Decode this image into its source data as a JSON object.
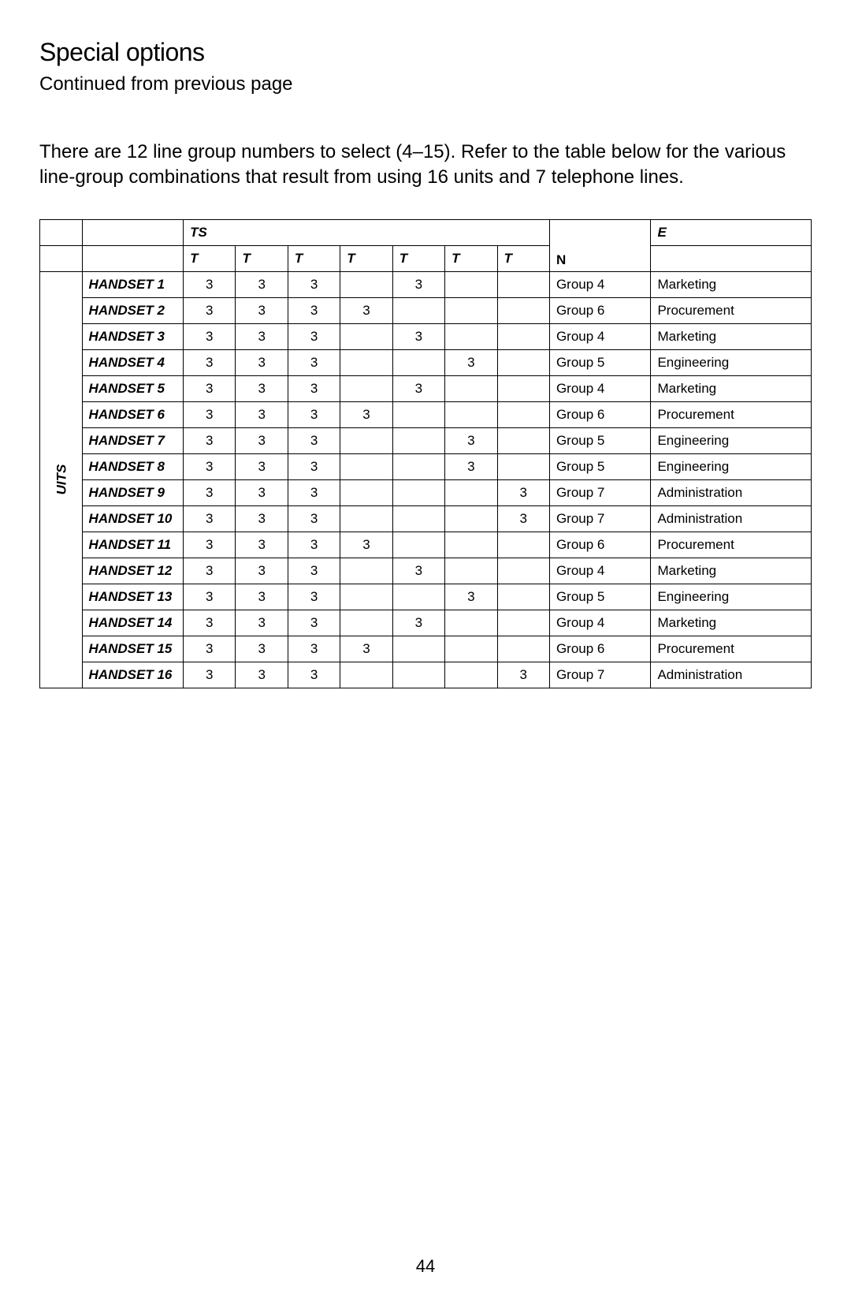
{
  "title": "Special options",
  "subtitle": "Continued from previous page",
  "body": "There are 12 line group numbers to select (4–15). Refer to the table below for the various line-group combinations that result from using 16 units and 7 telephone lines.",
  "page_number": "44",
  "table": {
    "header1": {
      "ts": "TS",
      "e": "E"
    },
    "header2": {
      "t": "T",
      "n": "N"
    },
    "rot_label": "UITS",
    "rows": [
      {
        "hs": "HANDSET 1",
        "t": [
          "3",
          "3",
          "3",
          "",
          "3",
          "",
          ""
        ],
        "grp": "Group 4",
        "dept": "Marketing"
      },
      {
        "hs": "HANDSET 2",
        "t": [
          "3",
          "3",
          "3",
          "3",
          "",
          "",
          ""
        ],
        "grp": "Group 6",
        "dept": "Procurement"
      },
      {
        "hs": "HANDSET 3",
        "t": [
          "3",
          "3",
          "3",
          "",
          "3",
          "",
          ""
        ],
        "grp": "Group 4",
        "dept": "Marketing"
      },
      {
        "hs": "HANDSET 4",
        "t": [
          "3",
          "3",
          "3",
          "",
          "",
          "3",
          ""
        ],
        "grp": "Group 5",
        "dept": "Engineering"
      },
      {
        "hs": "HANDSET 5",
        "t": [
          "3",
          "3",
          "3",
          "",
          "3",
          "",
          ""
        ],
        "grp": "Group 4",
        "dept": "Marketing"
      },
      {
        "hs": "HANDSET 6",
        "t": [
          "3",
          "3",
          "3",
          "3",
          "",
          "",
          ""
        ],
        "grp": "Group 6",
        "dept": "Procurement"
      },
      {
        "hs": "HANDSET 7",
        "t": [
          "3",
          "3",
          "3",
          "",
          "",
          "3",
          ""
        ],
        "grp": "Group 5",
        "dept": "Engineering"
      },
      {
        "hs": "HANDSET 8",
        "t": [
          "3",
          "3",
          "3",
          "",
          "",
          "3",
          ""
        ],
        "grp": "Group 5",
        "dept": "Engineering"
      },
      {
        "hs": "HANDSET 9",
        "t": [
          "3",
          "3",
          "3",
          "",
          "",
          "",
          "3"
        ],
        "grp": "Group 7",
        "dept": "Administration"
      },
      {
        "hs": "HANDSET 10",
        "t": [
          "3",
          "3",
          "3",
          "",
          "",
          "",
          "3"
        ],
        "grp": "Group 7",
        "dept": "Administration"
      },
      {
        "hs": "HANDSET 11",
        "t": [
          "3",
          "3",
          "3",
          "3",
          "",
          "",
          ""
        ],
        "grp": "Group 6",
        "dept": "Procurement"
      },
      {
        "hs": "HANDSET 12",
        "t": [
          "3",
          "3",
          "3",
          "",
          "3",
          "",
          ""
        ],
        "grp": "Group 4",
        "dept": "Marketing"
      },
      {
        "hs": "HANDSET 13",
        "t": [
          "3",
          "3",
          "3",
          "",
          "",
          "3",
          ""
        ],
        "grp": "Group 5",
        "dept": "Engineering"
      },
      {
        "hs": "HANDSET 14",
        "t": [
          "3",
          "3",
          "3",
          "",
          "3",
          "",
          ""
        ],
        "grp": "Group 4",
        "dept": "Marketing"
      },
      {
        "hs": "HANDSET 15",
        "t": [
          "3",
          "3",
          "3",
          "3",
          "",
          "",
          ""
        ],
        "grp": "Group 6",
        "dept": "Procurement"
      },
      {
        "hs": "HANDSET 16",
        "t": [
          "3",
          "3",
          "3",
          "",
          "",
          "",
          "3"
        ],
        "grp": "Group 7",
        "dept": "Administration"
      }
    ]
  }
}
